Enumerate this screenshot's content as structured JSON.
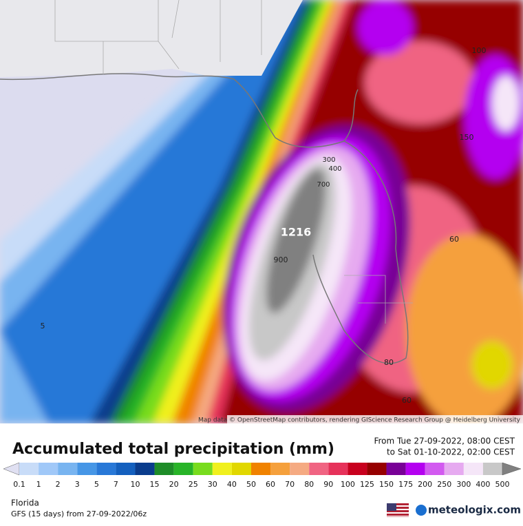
{
  "header": {
    "title": "Accumulated total precipitation (mm)",
    "from": "From Tue 27-09-2022, 08:00 CEST",
    "to": "to Sat 01-10-2022, 02:00 CEST"
  },
  "map": {
    "attribution": "Map data © OpenStreetMap contributors, rendering GIScience Research Group @ Heidelberg University",
    "contour_labels": [
      "100",
      "150",
      "300",
      "400",
      "700",
      "1216",
      "900",
      "60",
      "5",
      "80",
      "60"
    ]
  },
  "legend": {
    "labels": [
      "0.1",
      "1",
      "2",
      "3",
      "5",
      "7",
      "10",
      "15",
      "20",
      "25",
      "30",
      "40",
      "50",
      "60",
      "70",
      "80",
      "90",
      "100",
      "125",
      "150",
      "175",
      "200",
      "250",
      "300",
      "400",
      "500"
    ],
    "colors": [
      "#e0e0f2",
      "#c8dcf8",
      "#a0c8f8",
      "#78b4f0",
      "#4696e6",
      "#2878d7",
      "#1460be",
      "#0a3c8c",
      "#1e8c28",
      "#28b428",
      "#78dc1e",
      "#f0f01e",
      "#e1d700",
      "#f08200",
      "#f5a03c",
      "#f5aa82",
      "#f06482",
      "#e6325a",
      "#c8001e",
      "#960000",
      "#780096",
      "#b400f0",
      "#d25af0",
      "#e6aaf0",
      "#f5e6f8",
      "#c8c8c8",
      "#808080"
    ]
  },
  "footer": {
    "region": "Florida",
    "model": "GFS (15 days) from  27-09-2022/06z",
    "brand": "meteologix.com"
  }
}
